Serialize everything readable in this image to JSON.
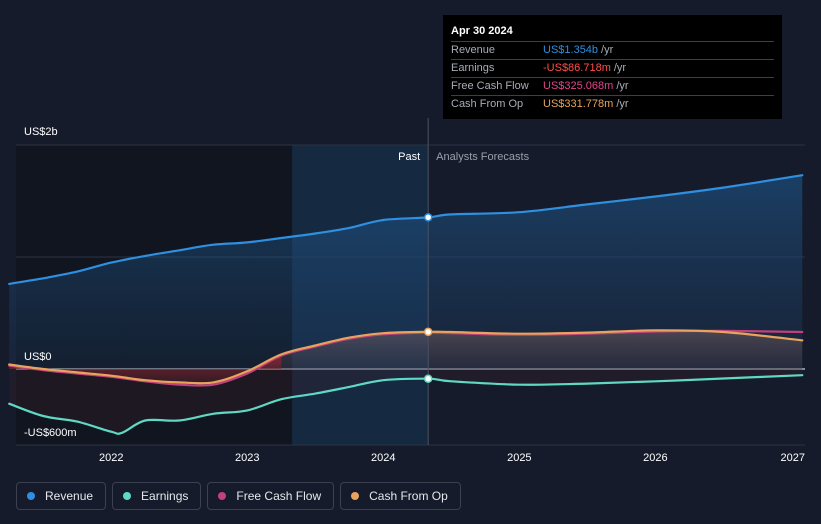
{
  "chart_data": {
    "type": "line",
    "x_axis": {
      "ticks": [
        "2022",
        "2023",
        "2024",
        "2025",
        "2026",
        "2027"
      ],
      "range": [
        2021.3,
        2027.1
      ]
    },
    "y_axis": {
      "labels": [
        {
          "text": "US$2b",
          "value": 2000
        },
        {
          "text": "US$0",
          "value": 0
        },
        {
          "text": "-US$600m",
          "value": -600
        }
      ],
      "range": [
        -680,
        2000
      ],
      "unit": "US$ m"
    },
    "regions": {
      "past_label": "Past",
      "forecast_label": "Analysts Forecasts",
      "past_start": 2023.33,
      "divider": 2024.33
    },
    "series": [
      {
        "name": "Revenue",
        "color": "#2f8fe0",
        "x": [
          2021.25,
          2021.5,
          2021.75,
          2022.0,
          2022.25,
          2022.5,
          2022.75,
          2023.0,
          2023.25,
          2023.5,
          2023.75,
          2024.0,
          2024.33,
          2024.5,
          2025.0,
          2025.5,
          2026.0,
          2026.5,
          2027.08
        ],
        "values": [
          760,
          810,
          870,
          950,
          1010,
          1060,
          1110,
          1130,
          1170,
          1210,
          1260,
          1330,
          1354,
          1380,
          1400,
          1470,
          1540,
          1620,
          1730
        ]
      },
      {
        "name": "Earnings",
        "color": "#5fd8c4",
        "x": [
          2021.25,
          2021.5,
          2021.75,
          2022.0,
          2022.08,
          2022.25,
          2022.5,
          2022.75,
          2023.0,
          2023.25,
          2023.5,
          2023.75,
          2024.0,
          2024.33,
          2024.5,
          2025.0,
          2025.5,
          2026.0,
          2026.5,
          2027.08
        ],
        "values": [
          -310,
          -420,
          -470,
          -560,
          -570,
          -460,
          -460,
          -400,
          -370,
          -270,
          -220,
          -160,
          -100,
          -87,
          -110,
          -140,
          -130,
          -110,
          -85,
          -55
        ]
      },
      {
        "name": "Free Cash Flow",
        "color": "#c0417d",
        "x": [
          2021.25,
          2021.5,
          2021.75,
          2022.0,
          2022.25,
          2022.5,
          2022.75,
          2023.0,
          2023.25,
          2023.5,
          2023.75,
          2024.0,
          2024.33,
          2024.5,
          2025.0,
          2025.5,
          2026.0,
          2026.5,
          2027.08
        ],
        "values": [
          30,
          -10,
          -40,
          -70,
          -110,
          -140,
          -140,
          -40,
          120,
          200,
          270,
          310,
          325,
          320,
          305,
          315,
          335,
          340,
          330
        ]
      },
      {
        "name": "Cash From Op",
        "color": "#e8a45c",
        "x": [
          2021.25,
          2021.5,
          2021.75,
          2022.0,
          2022.25,
          2022.5,
          2022.75,
          2023.0,
          2023.25,
          2023.5,
          2023.75,
          2024.0,
          2024.33,
          2024.5,
          2025.0,
          2025.5,
          2026.0,
          2026.5,
          2027.08
        ],
        "values": [
          40,
          0,
          -30,
          -60,
          -100,
          -120,
          -120,
          -20,
          130,
          210,
          280,
          320,
          332,
          330,
          315,
          325,
          345,
          330,
          255
        ]
      }
    ],
    "tooltip": {
      "date": "Apr 30 2024",
      "x": 2024.33,
      "rows": [
        {
          "label": "Revenue",
          "value": "US$1.354b",
          "unit": "/yr",
          "color": "#2f8fe0"
        },
        {
          "label": "Earnings",
          "value": "-US$86.718m",
          "unit": "/yr",
          "color": "#ff4d4d"
        },
        {
          "label": "Free Cash Flow",
          "value": "US$325.068m",
          "unit": "/yr",
          "color": "#e0468c"
        },
        {
          "label": "Cash From Op",
          "value": "US$331.778m",
          "unit": "/yr",
          "color": "#e8a45c"
        }
      ]
    },
    "legend": [
      {
        "label": "Revenue",
        "color": "#2f8fe0"
      },
      {
        "label": "Earnings",
        "color": "#5fd8c4"
      },
      {
        "label": "Free Cash Flow",
        "color": "#c0417d"
      },
      {
        "label": "Cash From Op",
        "color": "#e8a45c"
      }
    ]
  }
}
